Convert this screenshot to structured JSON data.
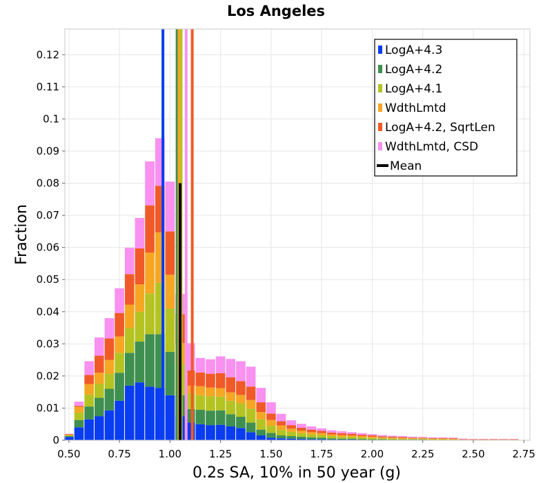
{
  "chart_data": {
    "type": "bar",
    "title": "Los Angeles",
    "xlabel": "0.2s SA, 10% in 50 year (g)",
    "ylabel": "Fraction",
    "xlim": [
      0.48,
      2.78
    ],
    "ylim": [
      0,
      0.128
    ],
    "xticks": [
      "0.50",
      "0.75",
      "1.00",
      "1.25",
      "1.50",
      "1.75",
      "2.00",
      "2.25",
      "2.50",
      "2.75"
    ],
    "yticks": [
      "0",
      "0.01",
      "0.02",
      "0.03",
      "0.04",
      "0.05",
      "0.06",
      "0.07",
      "0.08",
      "0.09",
      "0.1",
      "0.11",
      "0.12"
    ],
    "grid": true,
    "stacked": true,
    "legend_position": "top-right",
    "bin_width": 0.05,
    "x": [
      0.5,
      0.55,
      0.6,
      0.65,
      0.7,
      0.75,
      0.8,
      0.85,
      0.9,
      0.95,
      1.0,
      1.05,
      1.1,
      1.15,
      1.2,
      1.25,
      1.3,
      1.35,
      1.4,
      1.45,
      1.5,
      1.55,
      1.6,
      1.65,
      1.7,
      1.75,
      1.8,
      1.85,
      1.9,
      1.95,
      2.0,
      2.05,
      2.1,
      2.15,
      2.2,
      2.25,
      2.3,
      2.35,
      2.4,
      2.45,
      2.5,
      2.55,
      2.6,
      2.65,
      2.7
    ],
    "series": [
      {
        "name": "LogA+4.3",
        "color": "#0a3cf0",
        "values": [
          0.001,
          0.004,
          0.0065,
          0.0075,
          0.0093,
          0.0123,
          0.017,
          0.018,
          0.0167,
          0.0163,
          0.014,
          0.0075,
          0.0055,
          0.005,
          0.0047,
          0.0048,
          0.0043,
          0.0038,
          0.0025,
          0.0015,
          0.0008,
          0.0006,
          0.0005,
          0.0004,
          0.0003,
          0.0003,
          0.0002,
          0.0002,
          0.0002,
          0.0001,
          0.0001,
          0.0001,
          0.0001,
          0.0001,
          0.0001,
          0.0001,
          0,
          0,
          0,
          0,
          0,
          0,
          0,
          0,
          0
        ]
      },
      {
        "name": "LogA+4.2",
        "color": "#3f8f50",
        "values": [
          0.0003,
          0.0023,
          0.004,
          0.0057,
          0.0067,
          0.0087,
          0.0102,
          0.0127,
          0.0163,
          0.0167,
          0.0135,
          0.0065,
          0.0042,
          0.0045,
          0.0045,
          0.0045,
          0.0038,
          0.0035,
          0.003,
          0.0018,
          0.0015,
          0.0009,
          0.0008,
          0.0007,
          0.0006,
          0.0005,
          0.0004,
          0.0003,
          0.0003,
          0.0003,
          0.0002,
          0.0002,
          0.0001,
          0.0001,
          0.0001,
          0.0001,
          0.0001,
          0.0001,
          0.0001,
          0,
          0,
          0,
          0,
          0,
          0
        ]
      },
      {
        "name": "LogA+4.1",
        "color": "#b4c322",
        "values": [
          0.0002,
          0.0023,
          0.0037,
          0.0043,
          0.0047,
          0.0062,
          0.0077,
          0.0093,
          0.0127,
          0.016,
          0.0135,
          0.0095,
          0.005,
          0.0045,
          0.0045,
          0.0043,
          0.0042,
          0.0042,
          0.0043,
          0.0032,
          0.0022,
          0.0017,
          0.0013,
          0.0011,
          0.0009,
          0.0008,
          0.0007,
          0.0006,
          0.0006,
          0.0005,
          0.0004,
          0.0003,
          0.0003,
          0.0002,
          0.0002,
          0.0002,
          0.0002,
          0.0002,
          0.0001,
          0.0001,
          0.0001,
          0.0001,
          0.0001,
          0.0001,
          0.0001
        ]
      },
      {
        "name": "WdthLmtd",
        "color": "#f5a623",
        "values": [
          0.0002,
          0.0018,
          0.0033,
          0.0035,
          0.0043,
          0.0051,
          0.0073,
          0.0085,
          0.0127,
          0.0157,
          0.0105,
          0.0067,
          0.0023,
          0.0028,
          0.0027,
          0.0026,
          0.0026,
          0.0026,
          0.0027,
          0.0023,
          0.0018,
          0.0014,
          0.001,
          0.0008,
          0.0007,
          0.0006,
          0.0005,
          0.0005,
          0.0004,
          0.0004,
          0.0004,
          0.0003,
          0.0003,
          0.0003,
          0.0002,
          0.0002,
          0.0002,
          0.0002,
          0.0002,
          0.0001,
          0.0001,
          0.0001,
          0.0001,
          0.0001,
          0.0001
        ]
      },
      {
        "name": "LogA+4.2, SqrtLen",
        "color": "#f05a28",
        "values": [
          0.0002,
          0.0003,
          0.0028,
          0.0053,
          0.0067,
          0.0073,
          0.0095,
          0.0112,
          0.0147,
          0.0145,
          0.0135,
          0.009,
          0.0047,
          0.0043,
          0.0043,
          0.0047,
          0.0047,
          0.0043,
          0.0042,
          0.003,
          0.002,
          0.0013,
          0.0011,
          0.0009,
          0.0008,
          0.0007,
          0.0006,
          0.0006,
          0.0005,
          0.0004,
          0.0004,
          0.0003,
          0.0003,
          0.0003,
          0.0002,
          0.0002,
          0.0002,
          0.0002,
          0.0002,
          0.0001,
          0.0001,
          0.0001,
          0.0001,
          0.0001,
          0.0001
        ]
      },
      {
        "name": "WdthLmtd, CSD",
        "color": "#f891f0",
        "values": [
          0.0001,
          0.0013,
          0.0043,
          0.0057,
          0.0063,
          0.0077,
          0.0082,
          0.0095,
          0.0137,
          0.0148,
          0.0155,
          0.0063,
          0.0085,
          0.0045,
          0.0045,
          0.0052,
          0.0057,
          0.0062,
          0.0062,
          0.0045,
          0.0035,
          0.0023,
          0.0015,
          0.0012,
          0.001,
          0.0008,
          0.0007,
          0.0006,
          0.0005,
          0.0005,
          0.0004,
          0.0004,
          0.0003,
          0.0003,
          0.0003,
          0.0002,
          0.0002,
          0.0002,
          0.0002,
          0.0002,
          0.0001,
          0.0001,
          0.0001,
          0.0001,
          0.0001
        ]
      }
    ],
    "mean_lines": [
      {
        "series": "LogA+4.3",
        "x": 0.965
      },
      {
        "series": "LogA+4.2",
        "x": 1.035
      },
      {
        "series": "LogA+4.1",
        "x": 1.055
      },
      {
        "series": "WdthLmtd",
        "x": 1.045
      },
      {
        "series": "LogA+4.2, SqrtLen",
        "x": 1.11
      },
      {
        "series": "WdthLmtd, CSD",
        "x": 1.08
      }
    ],
    "overall_mean": {
      "name": "Mean",
      "x": 1.05,
      "color": "#000000"
    }
  }
}
